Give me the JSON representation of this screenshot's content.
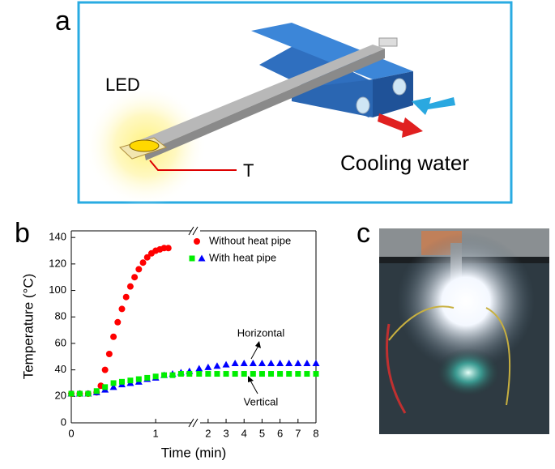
{
  "panels": {
    "a": {
      "label": "a",
      "led": "LED",
      "sensor": "T",
      "cooling": "Cooling water"
    },
    "b": {
      "label": "b"
    },
    "c": {
      "label": "c"
    }
  },
  "chart_data": {
    "type": "scatter",
    "x_label": "Time (min)",
    "y_label": "Temperature (°C)",
    "x_segments": [
      {
        "xlim": [
          0,
          1.45
        ],
        "xticks": [
          0,
          1
        ]
      },
      {
        "xlim": [
          1.42,
          8
        ],
        "xticks": [
          2,
          3,
          4,
          5,
          6,
          7,
          8
        ]
      }
    ],
    "ylim": [
      0,
      145
    ],
    "yticks": [
      0,
      20,
      40,
      60,
      80,
      100,
      120,
      140
    ],
    "series": [
      {
        "name": "Without  heat pipe",
        "color": "#ff0000",
        "marker": "circle",
        "x": [
          0,
          0.1,
          0.2,
          0.3,
          0.35,
          0.4,
          0.45,
          0.5,
          0.55,
          0.6,
          0.65,
          0.7,
          0.75,
          0.8,
          0.85,
          0.9,
          0.95,
          1.0,
          1.05,
          1.1,
          1.15
        ],
        "values": [
          22,
          22,
          22,
          23,
          28,
          40,
          52,
          65,
          76,
          86,
          95,
          103,
          110,
          116,
          121,
          125,
          128,
          130,
          131,
          132,
          132
        ]
      },
      {
        "name": "Horizontal",
        "color": "#0000ff",
        "marker": "triangle",
        "x": [
          0,
          0.1,
          0.2,
          0.3,
          0.4,
          0.5,
          0.6,
          0.7,
          0.8,
          0.9,
          1.0,
          1.1,
          1.2,
          1.3,
          1.4,
          1.5,
          2,
          2.5,
          3,
          3.5,
          4,
          4.5,
          5,
          5.5,
          6,
          6.5,
          7,
          7.5,
          8
        ],
        "values": [
          22,
          22,
          22,
          23,
          25,
          27,
          29,
          30,
          31,
          33,
          34,
          36,
          37,
          38,
          39,
          41,
          42,
          43,
          44,
          45,
          45,
          45,
          45,
          45,
          45,
          45,
          45,
          45,
          45
        ]
      },
      {
        "name": "Vertical",
        "color": "#00ee00",
        "marker": "square",
        "x": [
          0,
          0.1,
          0.2,
          0.3,
          0.4,
          0.5,
          0.6,
          0.7,
          0.8,
          0.9,
          1.0,
          1.1,
          1.2,
          1.3,
          1.4,
          1.5,
          2,
          2.5,
          3,
          3.5,
          4,
          4.5,
          5,
          5.5,
          6,
          6.5,
          7,
          7.5,
          8
        ],
        "values": [
          22,
          22,
          22,
          24,
          27,
          30,
          31,
          32,
          33,
          34,
          35,
          36,
          36,
          37,
          37,
          37,
          37,
          37,
          37,
          37,
          37,
          37,
          37,
          37,
          37,
          37,
          37,
          37,
          37
        ]
      }
    ],
    "legend": [
      {
        "label": "Without  heat pipe",
        "series": [
          0
        ]
      },
      {
        "label": "With heat pipe",
        "series": [
          2,
          1
        ]
      }
    ]
  }
}
